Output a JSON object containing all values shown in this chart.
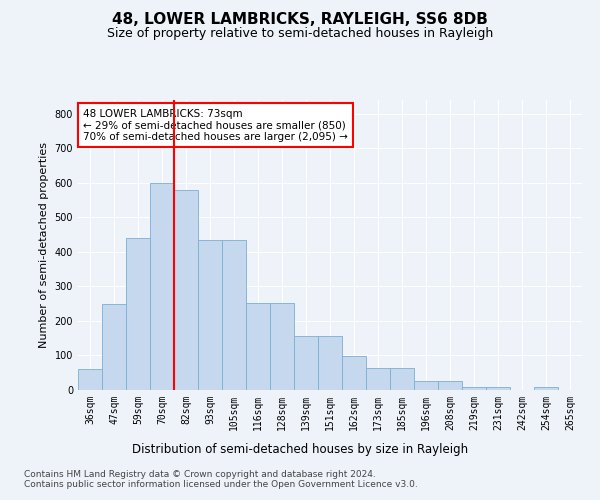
{
  "title": "48, LOWER LAMBRICKS, RAYLEIGH, SS6 8DB",
  "subtitle": "Size of property relative to semi-detached houses in Rayleigh",
  "xlabel": "Distribution of semi-detached houses by size in Rayleigh",
  "ylabel": "Number of semi-detached properties",
  "categories": [
    "36sqm",
    "47sqm",
    "59sqm",
    "70sqm",
    "82sqm",
    "93sqm",
    "105sqm",
    "116sqm",
    "128sqm",
    "139sqm",
    "151sqm",
    "162sqm",
    "173sqm",
    "185sqm",
    "196sqm",
    "208sqm",
    "219sqm",
    "231sqm",
    "242sqm",
    "254sqm",
    "265sqm"
  ],
  "values": [
    60,
    248,
    440,
    600,
    578,
    435,
    435,
    253,
    253,
    155,
    155,
    98,
    63,
    63,
    25,
    25,
    10,
    10,
    0,
    8,
    0
  ],
  "bar_color": "#c5d8ee",
  "bar_edge_color": "#7bafd4",
  "vline_x_index": 4,
  "vline_color": "red",
  "annotation_text": "48 LOWER LAMBRICKS: 73sqm\n← 29% of semi-detached houses are smaller (850)\n70% of semi-detached houses are larger (2,095) →",
  "annotation_box_color": "white",
  "annotation_box_edge": "red",
  "ylim": [
    0,
    840
  ],
  "yticks": [
    0,
    100,
    200,
    300,
    400,
    500,
    600,
    700,
    800
  ],
  "footer": "Contains HM Land Registry data © Crown copyright and database right 2024.\nContains public sector information licensed under the Open Government Licence v3.0.",
  "bg_color": "#eef2f9",
  "plot_bg_color": "#eef2f9",
  "title_fontsize": 11,
  "subtitle_fontsize": 9,
  "xlabel_fontsize": 8.5,
  "ylabel_fontsize": 8,
  "footer_fontsize": 6.5,
  "tick_fontsize": 7,
  "annot_fontsize": 7.5
}
